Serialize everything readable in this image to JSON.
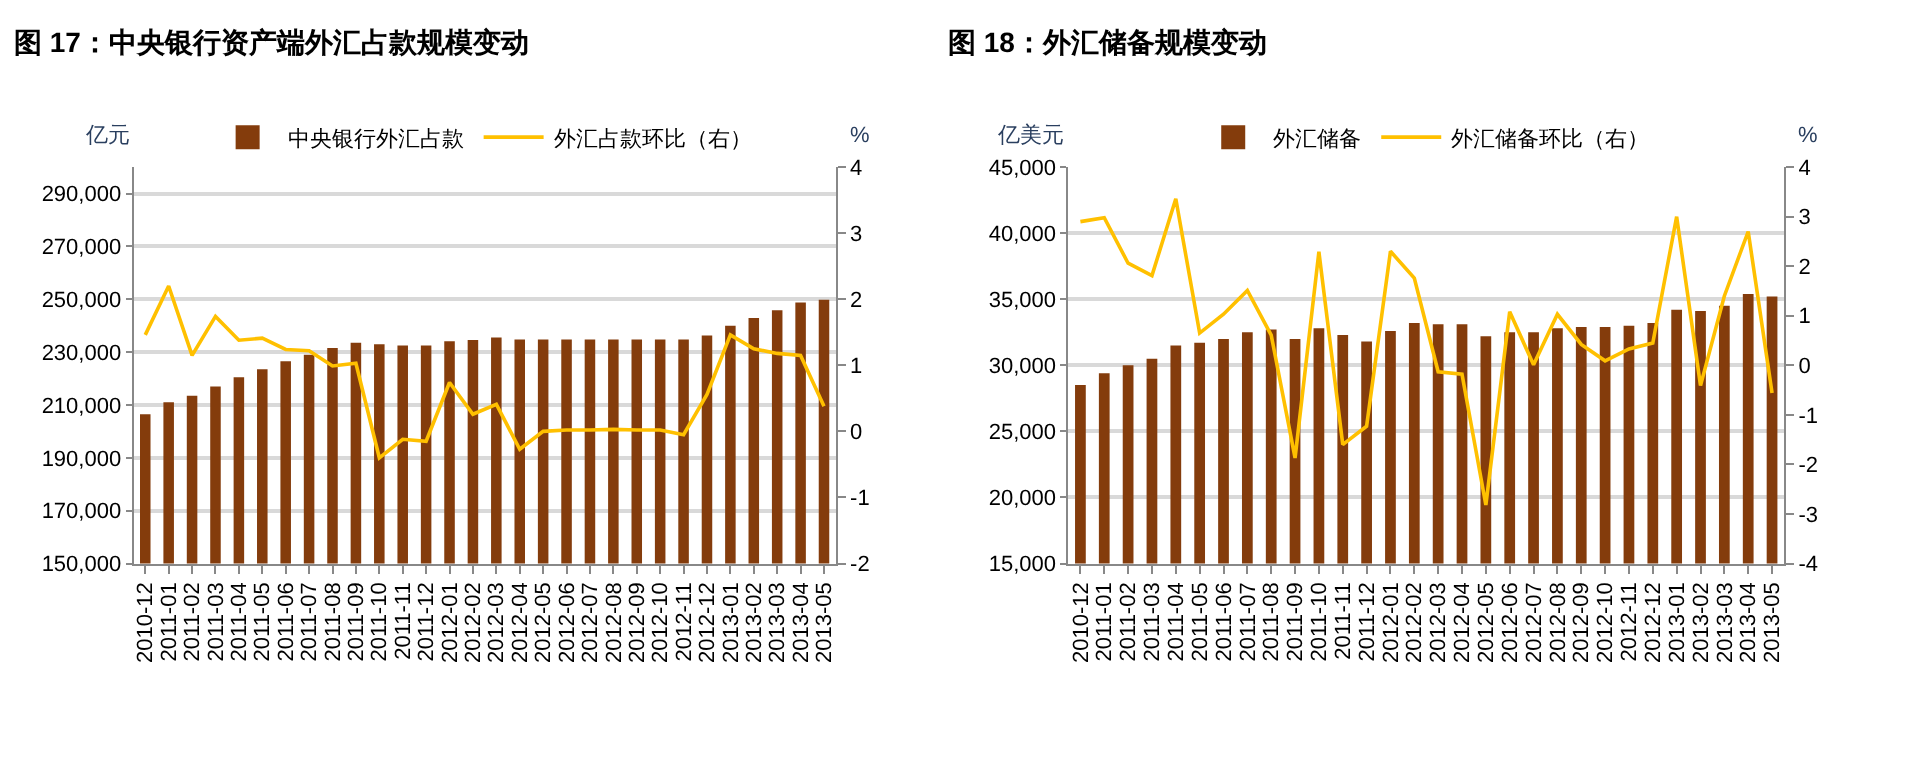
{
  "chart_data": [
    {
      "type": "bar",
      "title": "图 17：中央银行资产端外汇占款规模变动",
      "ylabel": "亿元",
      "y2label": "%",
      "categories": [
        "2010-12",
        "2011-01",
        "2011-02",
        "2011-03",
        "2011-04",
        "2011-05",
        "2011-06",
        "2011-07",
        "2011-08",
        "2011-09",
        "2011-10",
        "2011-11",
        "2011-12",
        "2012-01",
        "2012-02",
        "2012-03",
        "2012-04",
        "2012-05",
        "2012-06",
        "2012-07",
        "2012-08",
        "2012-09",
        "2012-10",
        "2012-11",
        "2012-12",
        "2013-01",
        "2013-02",
        "2013-03",
        "2013-04",
        "2013-05"
      ],
      "series": [
        {
          "name": "中央银行外汇占款",
          "color": "#843c0c",
          "values": [
            206500,
            211000,
            213500,
            217000,
            220500,
            223500,
            226500,
            229000,
            231500,
            233500,
            233000,
            232500,
            232500,
            234100,
            234600,
            235500,
            234800,
            234800,
            234800,
            234800,
            234800,
            234800,
            234800,
            234800,
            236300,
            240000,
            242900,
            245800,
            248800,
            249800
          ]
        },
        {
          "name": "外汇占款环比（右）",
          "type": "line",
          "axis": "y2",
          "color": "#ffc000",
          "values": [
            1.46,
            2.2,
            1.15,
            1.74,
            1.38,
            1.41,
            1.24,
            1.22,
            0.99,
            1.03,
            -0.4,
            -0.12,
            -0.15,
            0.74,
            0.26,
            0.41,
            -0.27,
            0.0,
            0.02,
            0.02,
            0.03,
            0.02,
            0.02,
            -0.05,
            0.56,
            1.46,
            1.25,
            1.18,
            1.15,
            0.38
          ]
        }
      ],
      "ylim": [
        150000,
        300000
      ],
      "yticks": [
        {
          "value": 150000,
          "label": "150,000"
        },
        {
          "value": 170000,
          "label": "170,000"
        },
        {
          "value": 190000,
          "label": "190,000"
        },
        {
          "value": 210000,
          "label": "210,000"
        },
        {
          "value": 230000,
          "label": "230,000"
        },
        {
          "value": 250000,
          "label": "250,000"
        },
        {
          "value": 270000,
          "label": "270,000"
        },
        {
          "value": 290000,
          "label": "290,000"
        }
      ],
      "y2lim": [
        -2,
        4
      ],
      "y2ticks": [
        -2,
        -1,
        0,
        1,
        2,
        3,
        4
      ],
      "grid": "y",
      "legend": "top"
    },
    {
      "type": "bar",
      "title": "图 18：外汇储备规模变动",
      "ylabel": "亿美元",
      "y2label": "%",
      "categories": [
        "2010-12",
        "2011-01",
        "2011-02",
        "2011-03",
        "2011-04",
        "2011-05",
        "2011-06",
        "2011-07",
        "2011-08",
        "2011-09",
        "2011-10",
        "2011-11",
        "2011-12",
        "2012-01",
        "2012-02",
        "2012-03",
        "2012-04",
        "2012-05",
        "2012-06",
        "2012-07",
        "2012-08",
        "2012-09",
        "2012-10",
        "2012-11",
        "2012-12",
        "2013-01",
        "2013-02",
        "2013-03",
        "2013-04",
        "2013-05"
      ],
      "series": [
        {
          "name": "外汇储备",
          "color": "#843c0c",
          "values": [
            28500,
            29400,
            30000,
            30500,
            31500,
            31700,
            32000,
            32500,
            32700,
            32000,
            32800,
            32300,
            31800,
            32600,
            33200,
            33100,
            33100,
            32200,
            32500,
            32500,
            32800,
            32900,
            32900,
            33000,
            33200,
            34200,
            34100,
            34500,
            35400,
            35200
          ]
        },
        {
          "name": "外汇储备环比（右）",
          "type": "line",
          "axis": "y2",
          "color": "#ffc000",
          "values": [
            2.9,
            2.98,
            2.06,
            1.81,
            3.36,
            0.65,
            1.03,
            1.51,
            0.61,
            -1.87,
            2.29,
            -1.6,
            -1.23,
            2.3,
            1.76,
            -0.13,
            -0.18,
            -2.82,
            1.08,
            0.01,
            1.03,
            0.42,
            0.09,
            0.33,
            0.45,
            3.0,
            -0.41,
            1.4,
            2.7,
            -0.56
          ]
        }
      ],
      "ylim": [
        15000,
        45000
      ],
      "yticks": [
        {
          "value": 15000,
          "label": "15,000"
        },
        {
          "value": 20000,
          "label": "20,000"
        },
        {
          "value": 25000,
          "label": "25,000"
        },
        {
          "value": 30000,
          "label": "30,000"
        },
        {
          "value": 35000,
          "label": "35,000"
        },
        {
          "value": 40000,
          "label": "40,000"
        },
        {
          "value": 45000,
          "label": "45,000"
        }
      ],
      "y2lim": [
        -4,
        4
      ],
      "y2ticks": [
        -4,
        -3,
        -2,
        -1,
        0,
        1,
        2,
        3,
        4
      ],
      "grid": "y",
      "legend": "top"
    }
  ]
}
